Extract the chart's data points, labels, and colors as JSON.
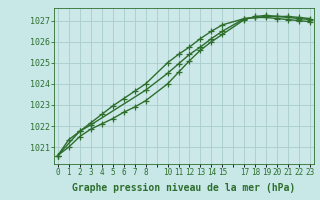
{
  "xlabel": "Graphe pression niveau de la mer (hPa)",
  "bg_color": "#c8e8e8",
  "plot_bg_color": "#cce8e8",
  "grid_color": "#aacccc",
  "line_color": "#2d6e2d",
  "ylim": [
    1020.2,
    1027.6
  ],
  "xlim": [
    -0.3,
    23.3
  ],
  "yticks": [
    1021,
    1022,
    1023,
    1024,
    1025,
    1026,
    1027
  ],
  "xtick_positions": [
    0,
    1,
    2,
    3,
    4,
    5,
    6,
    7,
    8,
    9,
    10,
    11,
    12,
    13,
    14,
    15,
    16,
    17,
    18,
    19,
    20,
    21,
    22,
    23
  ],
  "xtick_labels": [
    "0",
    "1",
    "2",
    "3",
    "4",
    "5",
    "6",
    "7",
    "8",
    "",
    "10",
    "11",
    "12",
    "13",
    "14",
    "15",
    "",
    "17",
    "18",
    "19",
    "20",
    "21",
    "22",
    "23"
  ],
  "line1_x": [
    0,
    1,
    2,
    3,
    4,
    5,
    6,
    7,
    8,
    10,
    11,
    12,
    13,
    14,
    15,
    17,
    18,
    19,
    20,
    21,
    22,
    23
  ],
  "line1_y": [
    1020.6,
    1021.0,
    1021.5,
    1021.85,
    1022.1,
    1022.35,
    1022.65,
    1022.9,
    1023.2,
    1024.0,
    1024.55,
    1025.1,
    1025.6,
    1026.0,
    1026.35,
    1027.05,
    1027.2,
    1027.25,
    1027.2,
    1027.2,
    1027.15,
    1027.1
  ],
  "line2_x": [
    0,
    1,
    2,
    3,
    4,
    5,
    6,
    7,
    8,
    10,
    11,
    12,
    13,
    14,
    15,
    17,
    18,
    19,
    20,
    21,
    22,
    23
  ],
  "line2_y": [
    1020.6,
    1021.35,
    1021.75,
    1022.15,
    1022.55,
    1022.95,
    1023.3,
    1023.65,
    1024.0,
    1025.0,
    1025.4,
    1025.75,
    1026.15,
    1026.5,
    1026.8,
    1027.1,
    1027.15,
    1027.2,
    1027.2,
    1027.15,
    1027.1,
    1027.05
  ],
  "line3_x": [
    0,
    2,
    3,
    8,
    10,
    11,
    12,
    13,
    14,
    15,
    17,
    18,
    19,
    20,
    21,
    22,
    23
  ],
  "line3_y": [
    1020.6,
    1021.75,
    1022.05,
    1023.7,
    1024.5,
    1024.95,
    1025.4,
    1025.75,
    1026.15,
    1026.5,
    1027.1,
    1027.15,
    1027.15,
    1027.1,
    1027.05,
    1027.0,
    1026.95
  ],
  "marker": "+",
  "markersize": 4,
  "linewidth": 1.0,
  "xlabel_fontsize": 7,
  "ytick_fontsize": 6,
  "xtick_fontsize": 5.5
}
